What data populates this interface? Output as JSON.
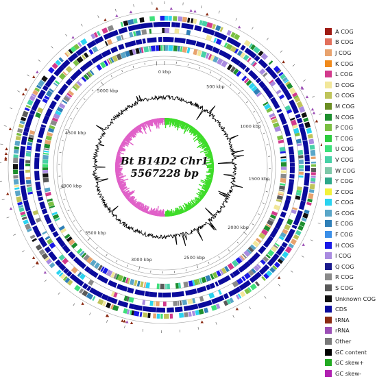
{
  "genome": {
    "name": "Bt B14D2 Chr1",
    "length_label": "5567228 bp"
  },
  "scale_labels": [
    "0 kbp",
    "500 kbp",
    "1000 kbp",
    "1500 kbp",
    "2000 kbp",
    "2500 kbp",
    "3000 kbp",
    "3500 kbp",
    "4000 kbp",
    "4500 kbp",
    "5000 kbp"
  ],
  "legend": [
    {
      "label": "A COG",
      "color": "#9e1b13"
    },
    {
      "label": "B COG",
      "color": "#e2705c"
    },
    {
      "label": "J COG",
      "color": "#e8a36e"
    },
    {
      "label": "K COG",
      "color": "#f08a1c"
    },
    {
      "label": "L COG",
      "color": "#d23a8c"
    },
    {
      "label": "D COG",
      "color": "#f2e79a"
    },
    {
      "label": "O COG",
      "color": "#bfc45a"
    },
    {
      "label": "M COG",
      "color": "#6b8e23"
    },
    {
      "label": "N COG",
      "color": "#1d8f2e"
    },
    {
      "label": "P COG",
      "color": "#7bc043"
    },
    {
      "label": "T COG",
      "color": "#2ecc40"
    },
    {
      "label": "U COG",
      "color": "#3ee07a"
    },
    {
      "label": "V COG",
      "color": "#48d1a6"
    },
    {
      "label": "W COG",
      "color": "#7fc8a9"
    },
    {
      "label": "Y COG",
      "color": "#2ea88a"
    },
    {
      "label": "Z COG",
      "color": "#f2f23a"
    },
    {
      "label": "C COG",
      "color": "#2bd3f0"
    },
    {
      "label": "G COG",
      "color": "#5aa6c8"
    },
    {
      "label": "E COG",
      "color": "#2f7fb7"
    },
    {
      "label": "F COG",
      "color": "#3b8fe8"
    },
    {
      "label": "H COG",
      "color": "#1a1ae6"
    },
    {
      "label": "I COG",
      "color": "#a98be0"
    },
    {
      "label": "Q COG",
      "color": "#1a1a8c"
    },
    {
      "label": "R COG",
      "color": "#8a8a8a"
    },
    {
      "label": "S COG",
      "color": "#5a5a5a"
    },
    {
      "label": "Unknown COG",
      "color": "#111111"
    },
    {
      "label": "CDS",
      "color": "#0a0a9c"
    },
    {
      "label": "tRNA",
      "color": "#8b2a12"
    },
    {
      "label": "rRNA",
      "color": "#9b4fb5"
    },
    {
      "label": "Other",
      "color": "#7a7a7a"
    },
    {
      "label": "GC content",
      "color": "#000000"
    },
    {
      "label": "GC skew+",
      "color": "#22aa22"
    },
    {
      "label": "GC skew-",
      "color": "#b020b0"
    }
  ],
  "colors": {
    "cds": "#0a0a9c",
    "trna": "#8b2a12",
    "rrna": "#9b4fb5",
    "gc_content": "#000000",
    "gc_skew_pos": "#3fdc2a",
    "gc_skew_neg": "#e060c8",
    "ring_line": "#9a9a9a",
    "cog_mix": [
      "#1a1ae6",
      "#2bd3f0",
      "#5aa6c8",
      "#2f7fb7",
      "#7bc043",
      "#48d1a6",
      "#bfc45a",
      "#a98be0",
      "#e8a36e",
      "#3ee07a",
      "#f2e79a",
      "#1d8f2e",
      "#8a8a8a",
      "#5a5a5a",
      "#d23a8c",
      "#111111"
    ]
  }
}
